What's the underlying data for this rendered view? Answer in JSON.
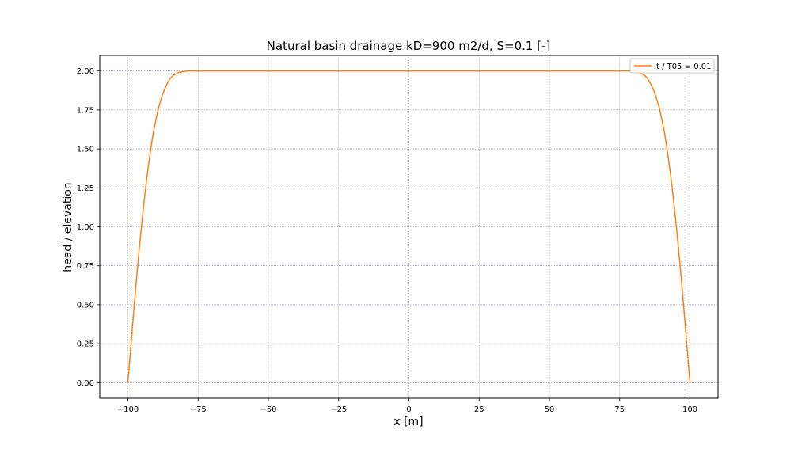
{
  "chart_data": {
    "type": "line",
    "title": "Natural basin drainage kD=900 m2/d, S=0.1 [-]",
    "xlabel": "x [m]",
    "ylabel": "head / elevation",
    "xlim": [
      -110,
      110
    ],
    "ylim": [
      -0.1,
      2.1
    ],
    "xticks": [
      -100,
      -75,
      -50,
      -25,
      0,
      25,
      50,
      75,
      100
    ],
    "xtick_labels": [
      "−100",
      "−75",
      "−50",
      "−25",
      "0",
      "25",
      "50",
      "75",
      "100"
    ],
    "yticks": [
      0.0,
      0.25,
      0.5,
      0.75,
      1.0,
      1.25,
      1.5,
      1.75,
      2.0
    ],
    "ytick_labels": [
      "0.00",
      "0.25",
      "0.50",
      "0.75",
      "1.00",
      "1.25",
      "1.50",
      "1.75",
      "2.00"
    ],
    "grid": true,
    "legend_position": "top-right",
    "colors": {
      "line": "#ff7f0e",
      "grid_x": "#a0a080",
      "grid_y": "#8080b0"
    },
    "series": [
      {
        "name": "t / T05 = 0.01",
        "x": [
          -100,
          -99,
          -98,
          -97,
          -96,
          -95,
          -94,
          -93,
          -92,
          -91,
          -90,
          -89,
          -88,
          -87,
          -86,
          -85,
          -84,
          -83,
          -82,
          -81,
          -80,
          -79,
          -78,
          -77,
          -76,
          -75,
          -70,
          -50,
          0,
          50,
          70,
          75,
          76,
          77,
          78,
          79,
          80,
          81,
          82,
          83,
          84,
          85,
          86,
          87,
          88,
          89,
          90,
          91,
          92,
          93,
          94,
          95,
          96,
          97,
          98,
          99,
          100
        ],
        "y": [
          0.0,
          0.22,
          0.44,
          0.65,
          0.85,
          1.03,
          1.2,
          1.35,
          1.48,
          1.6,
          1.69,
          1.77,
          1.83,
          1.88,
          1.92,
          1.95,
          1.97,
          1.98,
          1.99,
          1.995,
          1.998,
          1.999,
          2.0,
          2.0,
          2.0,
          2.0,
          2.0,
          2.0,
          2.0,
          2.0,
          2.0,
          2.0,
          2.0,
          2.0,
          2.0,
          1.999,
          1.998,
          1.995,
          1.99,
          1.98,
          1.97,
          1.95,
          1.92,
          1.88,
          1.83,
          1.77,
          1.69,
          1.6,
          1.48,
          1.35,
          1.2,
          1.03,
          0.85,
          0.65,
          0.44,
          0.22,
          0.0
        ]
      }
    ]
  }
}
